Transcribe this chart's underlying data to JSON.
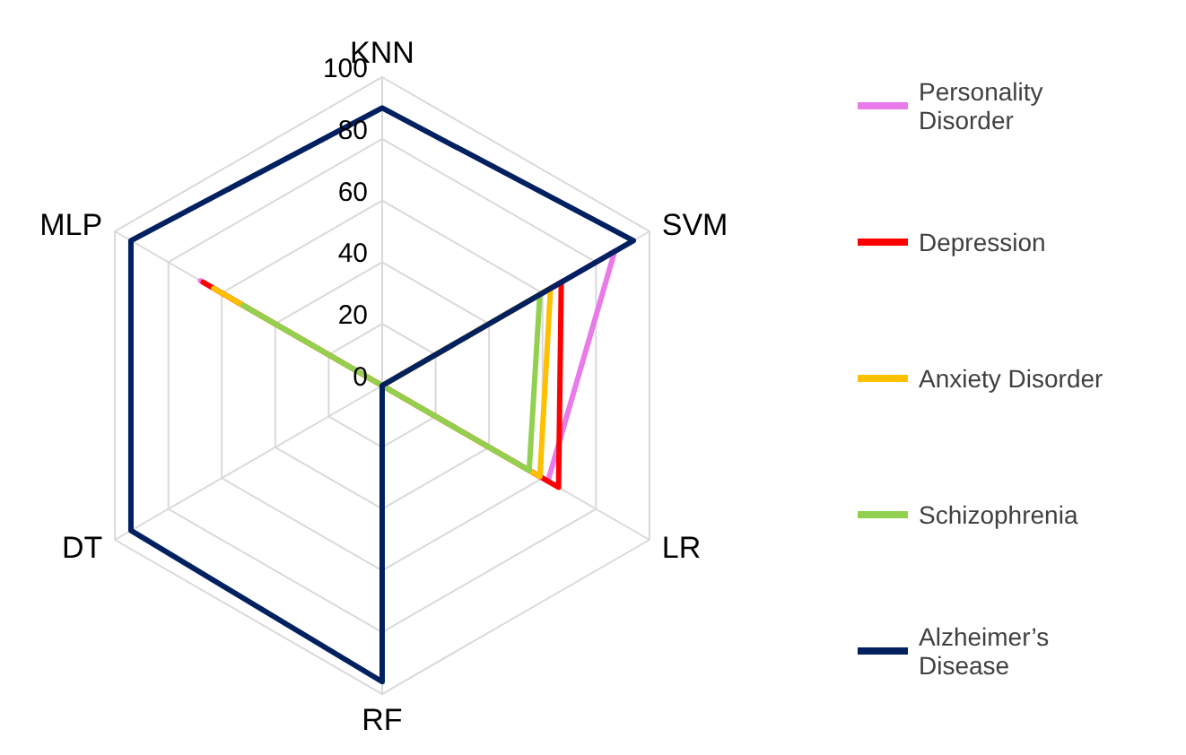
{
  "chart_data": {
    "type": "radar",
    "categories": [
      "KNN",
      "SVM",
      "LR",
      "RF",
      "DT",
      "MLP"
    ],
    "ylim": [
      0,
      100
    ],
    "yticks": [
      0,
      20,
      40,
      60,
      80,
      100
    ],
    "grid": true,
    "legend": "right",
    "line_style": "solid",
    "marker": "none",
    "series": [
      {
        "name": "Personality Disorder",
        "color": "#e97ae9",
        "values": [
          0,
          87,
          62,
          0,
          0,
          68
        ]
      },
      {
        "name": "Depression",
        "color": "#ff0000",
        "values": [
          0,
          67,
          66,
          0,
          0,
          67
        ]
      },
      {
        "name": "Anxiety Disorder",
        "color": "#ffc000",
        "values": [
          0,
          63,
          59,
          0,
          0,
          63
        ]
      },
      {
        "name": "Schizophrenia",
        "color": "#92d050",
        "values": [
          0,
          59,
          55,
          0,
          0,
          52
        ]
      },
      {
        "name": "Alzheimer’s Disease",
        "color": "#002060",
        "values": [
          90,
          94,
          0,
          96,
          94,
          94
        ]
      }
    ]
  }
}
